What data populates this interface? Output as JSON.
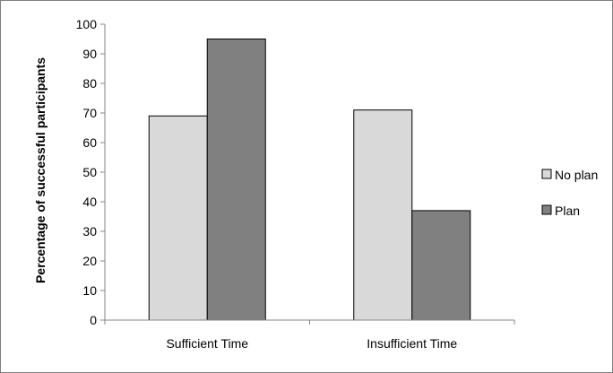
{
  "chart_data": {
    "type": "bar",
    "title": "",
    "xlabel": "",
    "ylabel": "Percentage of successful participants",
    "ylim": [
      0,
      100
    ],
    "yticks": [
      0,
      10,
      20,
      30,
      40,
      50,
      60,
      70,
      80,
      90,
      100
    ],
    "categories": [
      "Sufficient Time",
      "Insufficient Time"
    ],
    "series": [
      {
        "name": "No plan",
        "values": [
          69,
          71
        ],
        "color": "#d9d9d9"
      },
      {
        "name": "Plan",
        "values": [
          95,
          37
        ],
        "color": "#808080"
      }
    ],
    "grid": false,
    "legend": "right"
  }
}
